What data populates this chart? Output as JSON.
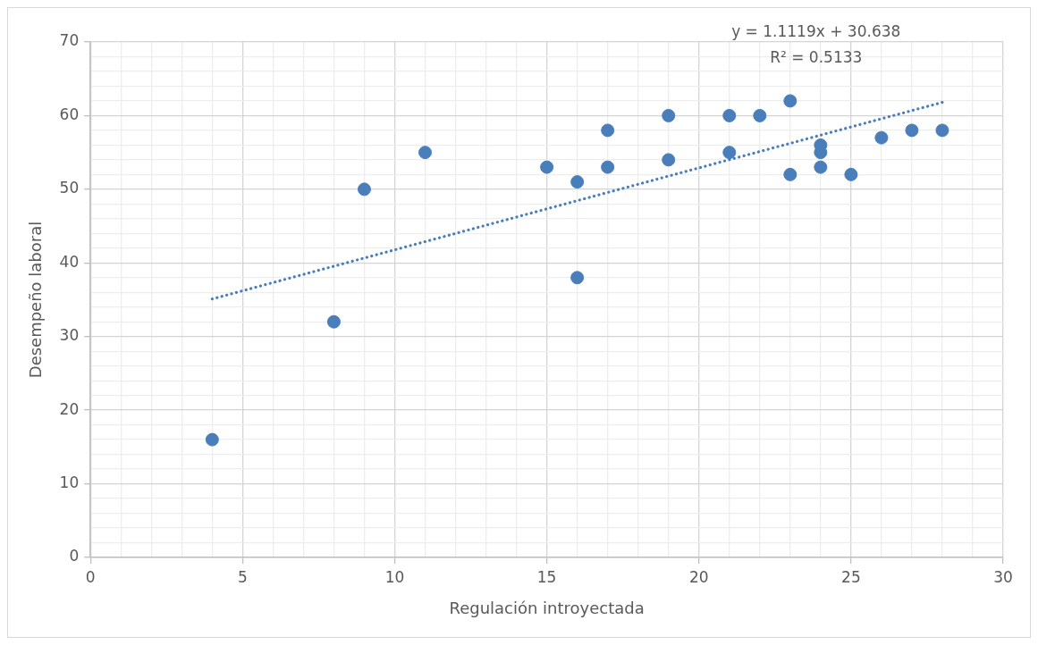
{
  "chart_data": {
    "type": "scatter",
    "xlabel": "Regulación introyectada",
    "ylabel": "Desempeño laboral",
    "annotations": [
      "y = 1.1119x + 30.638",
      "R² = 0.5133"
    ],
    "series": [
      {
        "color": "#4a7ebb",
        "marker": "circle",
        "x": [
          4,
          8,
          9,
          11,
          15,
          16,
          16,
          17,
          17,
          19,
          19,
          21,
          21,
          22,
          23,
          23,
          24,
          24,
          24,
          25,
          26,
          27,
          28
        ],
        "values": [
          16,
          32,
          50,
          55,
          53,
          51,
          38,
          58,
          53,
          60,
          54,
          60,
          55,
          60,
          62,
          52,
          56,
          55,
          53,
          52,
          57,
          58,
          58
        ]
      },
      {
        "type": "line",
        "color": "#4a7ebb",
        "marker": "none",
        "line_style": "dotted",
        "x": [
          4,
          28
        ],
        "values": [
          35.1,
          61.8
        ]
      }
    ],
    "xlim": [
      0,
      30
    ],
    "ylim": [
      0,
      70
    ],
    "xticks": [
      0,
      {
        "value": 1,
        "label": null
      },
      {
        "value": 2,
        "label": null
      },
      {
        "value": 3,
        "label": null
      },
      {
        "value": 4,
        "label": null
      },
      5,
      {
        "value": 6,
        "label": null
      },
      {
        "value": 7,
        "label": null
      },
      {
        "value": 8,
        "label": null
      },
      {
        "value": 9,
        "label": null
      },
      10,
      {
        "value": 11,
        "label": null
      },
      {
        "value": 12,
        "label": null
      },
      {
        "value": 13,
        "label": null
      },
      {
        "value": 14,
        "label": null
      },
      15,
      {
        "value": 16,
        "label": null
      },
      {
        "value": 17,
        "label": null
      },
      {
        "value": 18,
        "label": null
      },
      {
        "value": 19,
        "label": null
      },
      20,
      {
        "value": 21,
        "label": null
      },
      {
        "value": 22,
        "label": null
      },
      {
        "value": 23,
        "label": null
      },
      {
        "value": 24,
        "label": null
      },
      25,
      {
        "value": 26,
        "label": null
      },
      {
        "value": 27,
        "label": null
      },
      {
        "value": 28,
        "label": null
      },
      {
        "value": 29,
        "label": null
      },
      30
    ],
    "yticks": [
      0,
      {
        "value": 2,
        "label": null
      },
      {
        "value": 4,
        "label": null
      },
      {
        "value": 6,
        "label": null
      },
      {
        "value": 8,
        "label": null
      },
      10,
      {
        "value": 12,
        "label": null
      },
      {
        "value": 14,
        "label": null
      },
      {
        "value": 16,
        "label": null
      },
      {
        "value": 18,
        "label": null
      },
      20,
      {
        "value": 22,
        "label": null
      },
      {
        "value": 24,
        "label": null
      },
      {
        "value": 26,
        "label": null
      },
      {
        "value": 28,
        "label": null
      },
      30,
      {
        "value": 32,
        "label": null
      },
      {
        "value": 34,
        "label": null
      },
      {
        "value": 36,
        "label": null
      },
      {
        "value": 38,
        "label": null
      },
      40,
      {
        "value": 42,
        "label": null
      },
      {
        "value": 44,
        "label": null
      },
      {
        "value": 46,
        "label": null
      },
      {
        "value": 48,
        "label": null
      },
      50,
      {
        "value": 52,
        "label": null
      },
      {
        "value": 54,
        "label": null
      },
      {
        "value": 56,
        "label": null
      },
      {
        "value": 58,
        "label": null
      },
      60,
      {
        "value": 62,
        "label": null
      },
      {
        "value": 64,
        "label": null
      },
      {
        "value": 66,
        "label": null
      },
      {
        "value": 68,
        "label": null
      },
      70
    ],
    "grid": true,
    "legend": false
  }
}
